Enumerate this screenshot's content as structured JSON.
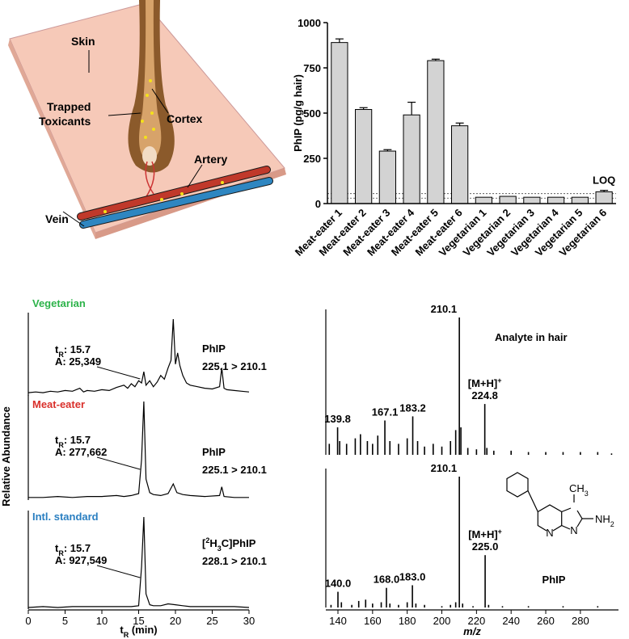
{
  "illustration": {
    "skin": "Skin",
    "trapped": [
      "Trapped",
      "Toxicants"
    ],
    "cortex": "Cortex",
    "artery": "Artery",
    "vein": "Vein"
  },
  "chart_data": [
    {
      "type": "bar",
      "ylabel": "PhIP (pg/g hair)",
      "categories": [
        "Meat-eater 1",
        "Meat-eater 2",
        "Meat-eater 3",
        "Meat-eater 4",
        "Meat-eater 5",
        "Meat-eater 6",
        "Vegetarian 1",
        "Vegetarian 2",
        "Vegetarian 3",
        "Vegetarian 4",
        "Vegetarian 5",
        "Vegetarian 6"
      ],
      "values": [
        890,
        520,
        290,
        490,
        790,
        430,
        35,
        40,
        35,
        35,
        35,
        65
      ],
      "errors": [
        20,
        10,
        8,
        70,
        8,
        15,
        null,
        null,
        null,
        null,
        null,
        8
      ],
      "color": "#d3d3d3",
      "reference_lines": [
        30,
        55
      ],
      "annotation": "LOQ",
      "ylim": [
        0,
        1000
      ],
      "yticks": [
        0,
        250,
        500,
        750,
        1000
      ]
    },
    {
      "type": "chromatogram",
      "ylabel": "Relative Abundance",
      "xlabel": [
        {
          "text": "t"
        },
        {
          "text": "R",
          "pos": "sub"
        },
        {
          "text": " (min)"
        }
      ],
      "xlim": [
        0,
        30
      ],
      "xticks": [
        0,
        5,
        10,
        15,
        20,
        25,
        30
      ],
      "ylim": [
        0,
        100
      ],
      "panels": [
        {
          "sample": "Vegetarian",
          "sample_color": "#2db34a",
          "compound": [
            {
              "text": "PhIP"
            }
          ],
          "transition": "225.1 > 210.1",
          "rt": [
            {
              "text": "t"
            },
            {
              "text": "R",
              "pos": "sub"
            },
            {
              "text": ": 15.7"
            }
          ],
          "area": "A: 25,349",
          "x": [
            0,
            1,
            2,
            3,
            4,
            5,
            6,
            7,
            7.5,
            8,
            9,
            10,
            11,
            12,
            13,
            13.5,
            14,
            14.5,
            15,
            15.4,
            15.7,
            16,
            16.5,
            17,
            17.5,
            18,
            18.5,
            19,
            19.4,
            19.7,
            20,
            20.3,
            20.6,
            21,
            21.5,
            22,
            23,
            24,
            25,
            26,
            26.3,
            26.6,
            27,
            28,
            29,
            30
          ],
          "values": [
            2,
            3,
            2,
            4,
            3,
            5,
            4,
            8,
            3,
            5,
            4,
            6,
            5,
            9,
            12,
            8,
            14,
            10,
            18,
            15,
            30,
            12,
            18,
            10,
            16,
            25,
            20,
            35,
            45,
            100,
            40,
            55,
            38,
            25,
            15,
            12,
            10,
            8,
            7,
            10,
            35,
            8,
            6,
            5,
            4,
            3
          ]
        },
        {
          "sample": "Meat-eater",
          "sample_color": "#d9302b",
          "compound": [
            {
              "text": "PhIP"
            }
          ],
          "transition": "225.1 > 210.1",
          "rt": [
            {
              "text": "t"
            },
            {
              "text": "R",
              "pos": "sub"
            },
            {
              "text": ": 15.7"
            }
          ],
          "area": "A: 277,662",
          "x": [
            0,
            2,
            4,
            6,
            8,
            10,
            12,
            13,
            14,
            15,
            15.4,
            15.7,
            16,
            16.5,
            17,
            18,
            19,
            19.7,
            20.2,
            21,
            22,
            24,
            26,
            26.3,
            26.6,
            28,
            30
          ],
          "values": [
            1,
            1,
            2,
            1,
            2,
            2,
            3,
            2,
            3,
            5,
            40,
            100,
            20,
            6,
            4,
            3,
            5,
            15,
            6,
            4,
            3,
            2,
            3,
            12,
            2,
            1,
            1
          ]
        },
        {
          "sample": "Intl. standard",
          "sample_color": "#2a7fc1",
          "compound": [
            {
              "text": "["
            },
            {
              "text": "2",
              "pos": "sup"
            },
            {
              "text": "H"
            },
            {
              "text": "3",
              "pos": "sub"
            },
            {
              "text": "C]PhIP"
            }
          ],
          "transition": "228.1 > 210.1",
          "rt": [
            {
              "text": "t"
            },
            {
              "text": "R",
              "pos": "sub"
            },
            {
              "text": ": 15.7"
            }
          ],
          "area": "A: 927,549",
          "x": [
            0,
            2,
            4,
            6,
            8,
            10,
            12,
            14,
            15,
            15.4,
            15.7,
            16,
            16.5,
            17,
            18,
            19,
            20,
            21,
            22,
            24,
            26,
            28,
            30
          ],
          "values": [
            0,
            1,
            0,
            1,
            1,
            1,
            1,
            1,
            2,
            45,
            100,
            15,
            3,
            2,
            2,
            4,
            3,
            2,
            1,
            1,
            1,
            1,
            0
          ]
        }
      ]
    },
    {
      "type": "spectrum",
      "xlabel": "m/z",
      "xlim": [
        133,
        302
      ],
      "xticks": [
        140,
        160,
        180,
        200,
        220,
        240,
        260,
        280
      ],
      "ylim": [
        0,
        100
      ],
      "panels": [
        {
          "title": "Analyte in hair",
          "x": [
            135,
            139.8,
            141,
            145,
            150,
            153,
            157,
            160,
            163,
            167.1,
            170,
            175,
            180,
            183.2,
            186,
            190,
            195,
            200,
            205,
            208,
            210.1,
            211,
            215,
            220,
            224.8,
            226,
            230,
            240,
            250,
            260,
            270,
            280,
            290,
            298
          ],
          "values": [
            8,
            20,
            10,
            8,
            12,
            15,
            10,
            8,
            14,
            25,
            10,
            8,
            12,
            28,
            10,
            6,
            8,
            6,
            10,
            18,
            100,
            20,
            5,
            4,
            37,
            5,
            3,
            3,
            2,
            2,
            2,
            2,
            2,
            1
          ],
          "annotations": [
            {
              "x": 139.8,
              "text": "139.8"
            },
            {
              "x": 167.1,
              "text": "167.1"
            },
            {
              "x": 183.2,
              "text": "183.2"
            },
            {
              "x": 210.1,
              "text": "210.1"
            },
            {
              "x": 224.8,
              "text": "224.8",
              "prefix": [
                {
                  "text": "[M+H]"
                },
                {
                  "text": "+",
                  "pos": "sup"
                }
              ]
            }
          ]
        },
        {
          "x": [
            136,
            140.0,
            142,
            148,
            152,
            156,
            160,
            165,
            168.0,
            170,
            175,
            180,
            183.0,
            185,
            190,
            200,
            205,
            208,
            210.1,
            212,
            218,
            225.0,
            227,
            235,
            250,
            270,
            290
          ],
          "values": [
            2,
            12,
            4,
            2,
            5,
            6,
            3,
            4,
            15,
            3,
            2,
            4,
            17,
            3,
            2,
            1,
            2,
            4,
            100,
            3,
            1,
            40,
            2,
            1,
            1,
            1,
            1
          ],
          "annotations": [
            {
              "x": 140.0,
              "text": "140.0"
            },
            {
              "x": 168.0,
              "text": "168.0"
            },
            {
              "x": 183.0,
              "text": "183.0"
            },
            {
              "x": 210.1,
              "text": "210.1"
            },
            {
              "x": 225.0,
              "text": "225.0",
              "prefix": [
                {
                  "text": "[M+H]"
                },
                {
                  "text": "+",
                  "pos": "sup"
                }
              ]
            }
          ],
          "structure": {
            "name": "PhIP",
            "ch3": [
              "CH",
              "3"
            ],
            "nh2": [
              "NH",
              "2"
            ],
            "n": [
              "N",
              "N"
            ]
          }
        }
      ]
    }
  ]
}
